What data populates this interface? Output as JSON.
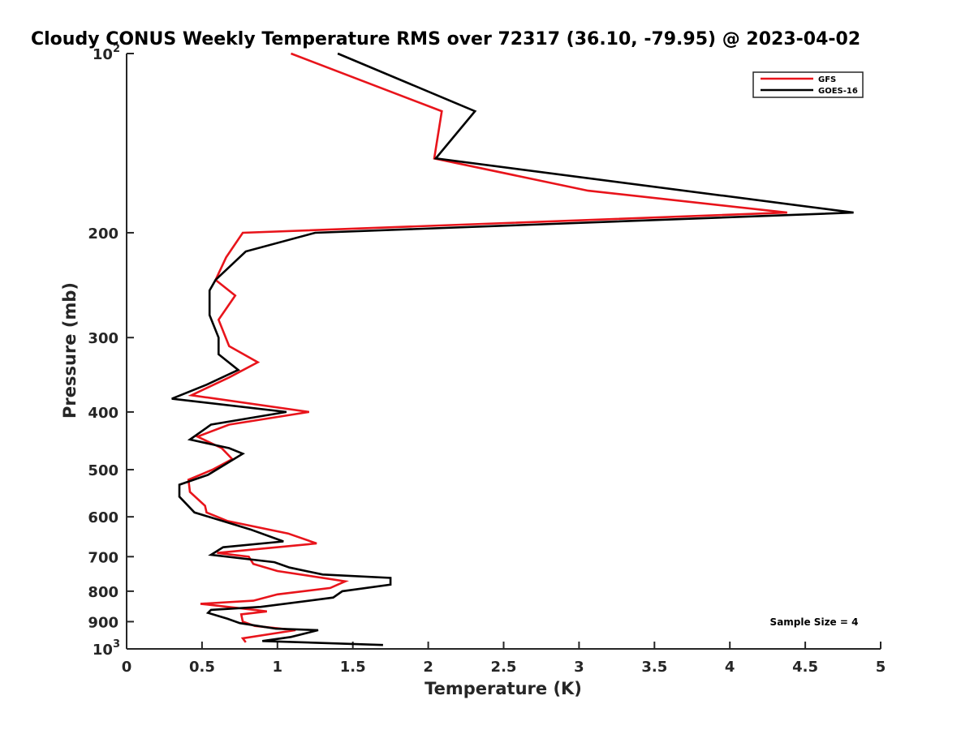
{
  "chart_data": {
    "type": "line",
    "title": "Cloudy CONUS Weekly Temperature RMS over 72317 (36.10, -79.95) @ 2023-04-02",
    "xlabel": "Temperature (K)",
    "ylabel": "Pressure (mb)",
    "xlim": [
      0,
      5
    ],
    "ylim": [
      100,
      1000
    ],
    "y_scale": "log",
    "y_reversed": true,
    "x_ticks": [
      0,
      0.5,
      1,
      1.5,
      2,
      2.5,
      3,
      3.5,
      4,
      4.5,
      5
    ],
    "x_tick_labels": [
      "0",
      "0.5",
      "1",
      "1.5",
      "2",
      "2.5",
      "3",
      "3.5",
      "4",
      "4.5",
      "5"
    ],
    "y_ticks": [
      100,
      200,
      300,
      400,
      500,
      600,
      700,
      800,
      900,
      1000
    ],
    "y_tick_labels": [
      {
        "base": "10",
        "exp": "2"
      },
      {
        "base": "200"
      },
      {
        "base": "300"
      },
      {
        "base": "400"
      },
      {
        "base": "500"
      },
      {
        "base": "600"
      },
      {
        "base": "700"
      },
      {
        "base": "800"
      },
      {
        "base": "900"
      },
      {
        "base": "10",
        "exp": "3"
      }
    ],
    "grid": false,
    "legend_position": "top-right",
    "annotation": "Sample Size = 4",
    "series": [
      {
        "name": "GFS",
        "color": "#e8141b",
        "points": [
          [
            1.09,
            100
          ],
          [
            2.09,
            125
          ],
          [
            2.04,
            150
          ],
          [
            3.06,
            170
          ],
          [
            4.38,
            185
          ],
          [
            0.77,
            200
          ],
          [
            0.66,
            220
          ],
          [
            0.59,
            240
          ],
          [
            0.72,
            255
          ],
          [
            0.61,
            280
          ],
          [
            0.68,
            310
          ],
          [
            0.87,
            330
          ],
          [
            0.68,
            350
          ],
          [
            0.43,
            375
          ],
          [
            1.21,
            400
          ],
          [
            0.68,
            420
          ],
          [
            0.47,
            440
          ],
          [
            0.63,
            460
          ],
          [
            0.7,
            480
          ],
          [
            0.57,
            500
          ],
          [
            0.41,
            520
          ],
          [
            0.42,
            545
          ],
          [
            0.52,
            575
          ],
          [
            0.53,
            590
          ],
          [
            0.67,
            610
          ],
          [
            1.07,
            640
          ],
          [
            1.26,
            665
          ],
          [
            0.6,
            690
          ],
          [
            0.81,
            700
          ],
          [
            0.84,
            720
          ],
          [
            1.0,
            740
          ],
          [
            1.45,
            770
          ],
          [
            1.35,
            790
          ],
          [
            1.0,
            810
          ],
          [
            0.84,
            830
          ],
          [
            0.49,
            840
          ],
          [
            0.85,
            860
          ],
          [
            0.93,
            865
          ],
          [
            0.76,
            875
          ],
          [
            0.77,
            900
          ],
          [
            0.85,
            915
          ],
          [
            1.12,
            930
          ],
          [
            0.77,
            960
          ],
          [
            0.79,
            975
          ]
        ]
      },
      {
        "name": "GOES-16",
        "color": "#000000",
        "points": [
          [
            1.4,
            100
          ],
          [
            2.31,
            125
          ],
          [
            2.05,
            150
          ],
          [
            4.82,
            185
          ],
          [
            1.25,
            200
          ],
          [
            0.79,
            215
          ],
          [
            0.59,
            240
          ],
          [
            0.55,
            250
          ],
          [
            0.55,
            275
          ],
          [
            0.61,
            300
          ],
          [
            0.61,
            320
          ],
          [
            0.74,
            340
          ],
          [
            0.53,
            360
          ],
          [
            0.3,
            380
          ],
          [
            1.06,
            400
          ],
          [
            0.56,
            420
          ],
          [
            0.42,
            445
          ],
          [
            0.68,
            460
          ],
          [
            0.77,
            470
          ],
          [
            0.54,
            510
          ],
          [
            0.35,
            530
          ],
          [
            0.35,
            555
          ],
          [
            0.45,
            590
          ],
          [
            0.82,
            630
          ],
          [
            1.04,
            660
          ],
          [
            0.64,
            675
          ],
          [
            0.56,
            695
          ],
          [
            0.98,
            715
          ],
          [
            1.08,
            730
          ],
          [
            1.3,
            750
          ],
          [
            1.75,
            760
          ],
          [
            1.75,
            780
          ],
          [
            1.43,
            800
          ],
          [
            1.37,
            820
          ],
          [
            0.89,
            850
          ],
          [
            0.56,
            860
          ],
          [
            0.54,
            870
          ],
          [
            0.67,
            890
          ],
          [
            0.75,
            905
          ],
          [
            0.99,
            925
          ],
          [
            1.27,
            930
          ],
          [
            1.09,
            955
          ],
          [
            0.9,
            970
          ],
          [
            1.7,
            985
          ]
        ]
      }
    ]
  }
}
